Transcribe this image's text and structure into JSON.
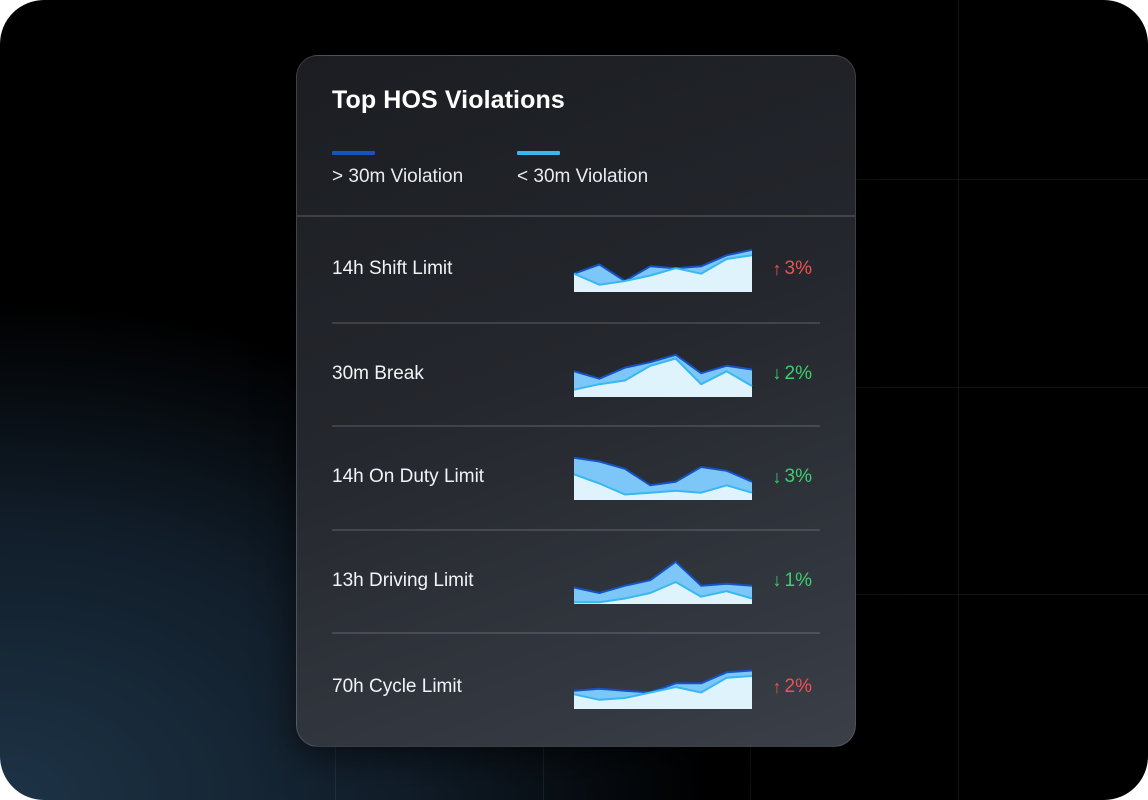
{
  "card": {
    "title": "Top HOS Violations",
    "legend": [
      {
        "label": "> 30m Violation",
        "color": "#1552c4"
      },
      {
        "label": "< 30m Violation",
        "color": "#37b8f1"
      }
    ]
  },
  "colors": {
    "up": "#ee5250",
    "down": "#3fcf6f",
    "area_dark": "#7cc7f8",
    "area_light": "#dff3fd"
  },
  "rows": [
    {
      "label": "14h Shift Limit",
      "change": "3%",
      "direction": "up",
      "arrow_icon": "arrow-up-icon",
      "series_a": [
        5,
        7.5,
        3,
        7,
        6.5,
        7,
        10,
        11.5
      ],
      "series_b": [
        5,
        2,
        3,
        4.5,
        6.5,
        5,
        9,
        10
      ]
    },
    {
      "label": "30m Break",
      "change": "2%",
      "direction": "down",
      "arrow_icon": "arrow-down-icon",
      "series_a": [
        7,
        5,
        8,
        9.5,
        11.5,
        6.5,
        8.5,
        7.5
      ],
      "series_b": [
        2,
        3.5,
        4.5,
        8.5,
        10.5,
        3.5,
        7,
        3
      ]
    },
    {
      "label": "14h On Duty Limit",
      "change": "3%",
      "direction": "down",
      "arrow_icon": "arrow-down-icon",
      "series_a": [
        11.5,
        10.5,
        8.5,
        4,
        5,
        9,
        8,
        5
      ],
      "series_b": [
        7,
        4.5,
        1.5,
        2,
        2.5,
        2,
        4,
        2
      ]
    },
    {
      "label": "13h Driving Limit",
      "change": "1%",
      "direction": "down",
      "arrow_icon": "arrow-down-icon",
      "series_a": [
        4.5,
        3,
        5,
        6.5,
        11.5,
        5,
        5.5,
        5
      ],
      "series_b": [
        0.5,
        0.5,
        1.5,
        3,
        6,
        2,
        3.5,
        1.5
      ]
    },
    {
      "label": "70h Cycle Limit",
      "change": "2%",
      "direction": "up",
      "arrow_icon": "arrow-up-icon",
      "series_a": [
        5,
        5.5,
        5,
        4.5,
        7,
        7,
        10,
        10.5
      ],
      "series_b": [
        4,
        2.5,
        3,
        4.5,
        6,
        4.5,
        8.5,
        9
      ]
    }
  ]
}
